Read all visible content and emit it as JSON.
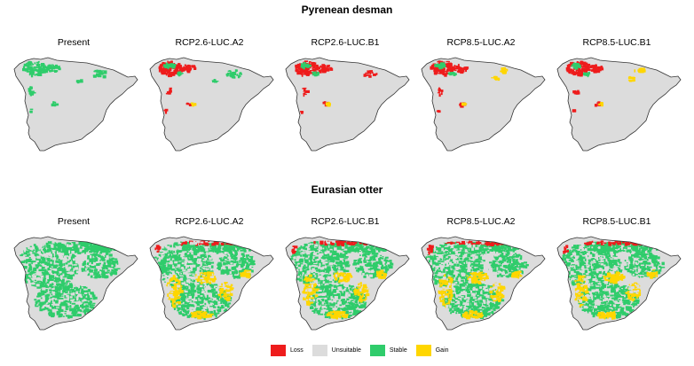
{
  "figure": {
    "sections": [
      {
        "title": "Pyrenean desman",
        "panels": [
          {
            "label": "Present",
            "pattern": "desman-present"
          },
          {
            "label": "RCP2.6-LUC.A2",
            "pattern": "desman-future-a"
          },
          {
            "label": "RCP2.6-LUC.B1",
            "pattern": "desman-future-b"
          },
          {
            "label": "RCP8.5-LUC.A2",
            "pattern": "desman-future-c"
          },
          {
            "label": "RCP8.5-LUC.B1",
            "pattern": "desman-future-d"
          }
        ]
      },
      {
        "title": "Eurasian otter",
        "panels": [
          {
            "label": "Present",
            "pattern": "otter-present"
          },
          {
            "label": "RCP2.6-LUC.A2",
            "pattern": "otter-future"
          },
          {
            "label": "RCP2.6-LUC.B1",
            "pattern": "otter-future"
          },
          {
            "label": "RCP8.5-LUC.A2",
            "pattern": "otter-future"
          },
          {
            "label": "RCP8.5-LUC.B1",
            "pattern": "otter-future"
          }
        ]
      }
    ],
    "legend": [
      {
        "label": "Loss",
        "color": "#ee1c1c"
      },
      {
        "label": "Unsuitable",
        "color": "#dcdcdc"
      },
      {
        "label": "Stable",
        "color": "#2fcc6b"
      },
      {
        "label": "Gain",
        "color": "#ffd600"
      }
    ],
    "colors": {
      "outline": "#333333",
      "unsuitable": "#dcdcdc",
      "stable": "#2fcc6b",
      "loss": "#ee1c1c",
      "gain": "#ffd600"
    }
  }
}
